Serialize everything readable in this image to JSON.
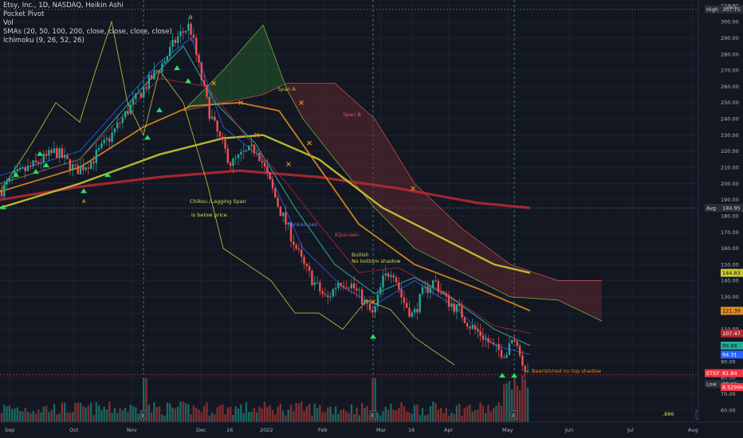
{
  "legend": {
    "title": "Etsy, Inc., 1D, NASDAQ, Heikin Ashi",
    "lines": [
      "Pocket Pivot",
      "Vol",
      "SMAs (20, 50, 100, 200, close, close, close, close)",
      "Ichimoku (9, 26, 52, 26)"
    ]
  },
  "currency": "USD",
  "y_ticks": [
    "310.00",
    "300.00",
    "290.00",
    "280.00",
    "270.00",
    "260.00",
    "250.00",
    "240.00",
    "230.00",
    "220.00",
    "210.00",
    "200.00",
    "190.00",
    "180.00",
    "170.00",
    "160.00",
    "150.00",
    "140.00",
    "130.00",
    "120.00",
    "110.00",
    "100.00",
    "90.00",
    "80.00",
    "70.00",
    "60.00"
  ],
  "x_ticks": [
    "Sep",
    "Oct",
    "Nov",
    "Dec",
    "16",
    "2022",
    "Feb",
    "Mar",
    "16",
    "Apr",
    "May",
    "Jun",
    "Jul",
    "Aug"
  ],
  "price_tags": [
    {
      "label": "High",
      "value": "307.75",
      "color": "#2a2e39",
      "text": "#d1d4dc"
    },
    {
      "label": "Avg",
      "value": "184.95",
      "color": "#2a2e39",
      "text": "#d1d4dc"
    },
    {
      "label": "",
      "value": "144.83",
      "color": "#c8c832",
      "text": "#131722"
    },
    {
      "label": "",
      "value": "121.39",
      "color": "#e08a1e",
      "text": "#131722"
    },
    {
      "label": "",
      "value": "107.47",
      "color": "#b22833",
      "text": "#ffffff"
    },
    {
      "label": "",
      "value": "99.88",
      "color": "#22ab94",
      "text": "#131722"
    },
    {
      "label": "",
      "value": "94.31",
      "color": "#2962ff",
      "text": "#ffffff"
    },
    {
      "label": "ETSY",
      "value": "81.84",
      "color": "#f23645",
      "text": "#ffffff"
    },
    {
      "label": "Low",
      "value": "78.06",
      "color": "#2a2e39",
      "text": "#d1d4dc"
    },
    {
      "label": "",
      "value": "8.5299M",
      "color": "#f23645",
      "text": "#ffffff"
    }
  ],
  "annotations": {
    "B": "B",
    "A": "A",
    "span_a": "Span A",
    "span_b": "Span B",
    "chikou1": "Chikou /Lagging Span",
    "chikou2": "is below price",
    "tenkan": "Tenkan-sen",
    "kijun": "Kijun-sen",
    "bullish1": "Bullish",
    "bullish2": "No bottom shadow",
    "bearish": "Bearish/red no top shadow",
    "fib": ".886",
    "earnings": "E"
  },
  "colors": {
    "up": "#26a69a",
    "down": "#ef5350",
    "sma20": "#26a69a",
    "sma50": "#e08a1e",
    "sma100": "#c8c832",
    "sma200": "#b22833",
    "lagging": "#c8c832",
    "cloud_bull": "#2e7d32",
    "cloud_bear": "#6d2b33"
  },
  "chart_data": {
    "type": "candlestick",
    "symbol": "ETSY",
    "ylim": [
      55,
      312
    ],
    "xlim": [
      "2021-08-27",
      "2022-08-31"
    ],
    "key_levels": {
      "high": 307.75,
      "avg": 184.95,
      "low": 78.06,
      "last": 81.84
    },
    "sma_levels": {
      "sma100": 144.83,
      "sma50": 121.39,
      "sma200": 107.47,
      "sma20": 99.88,
      "tenkan": 94.31
    },
    "last_volume": "8.5299M"
  }
}
